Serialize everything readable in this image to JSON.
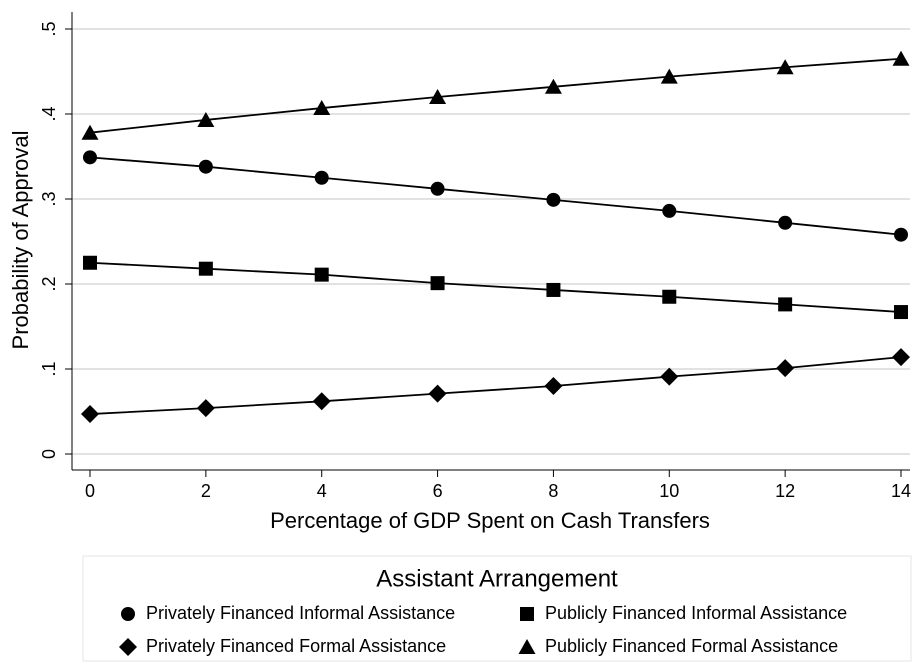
{
  "chart_data": {
    "type": "line",
    "xlabel": "Percentage of GDP Spent on Cash Transfers",
    "ylabel": "Probability of Approval",
    "x": [
      0,
      2,
      4,
      6,
      8,
      10,
      12,
      14
    ],
    "xlim": [
      0,
      14
    ],
    "xticks": [
      0,
      2,
      4,
      6,
      8,
      10,
      12,
      14
    ],
    "ylim": [
      0,
      0.5
    ],
    "yticks": [
      0,
      {
        "value": 0.1,
        "label": ".1"
      },
      {
        "value": 0.2,
        "label": ".2"
      },
      {
        "value": 0.3,
        "label": ".3"
      },
      {
        "value": 0.4,
        "label": ".4"
      },
      {
        "value": 0.5,
        "label": ".5"
      }
    ],
    "grid": true,
    "legend_title": "Assistant Arrangement",
    "series": [
      {
        "name": "Privately Financed Informal Assistance",
        "color": "#000000",
        "marker": "circle",
        "values": [
          0.349,
          0.338,
          0.325,
          0.312,
          0.299,
          0.286,
          0.272,
          0.258
        ]
      },
      {
        "name": "Publicly Financed Informal Assistance",
        "color": "#000000",
        "marker": "square",
        "values": [
          0.225,
          0.218,
          0.211,
          0.201,
          0.193,
          0.185,
          0.176,
          0.167
        ]
      },
      {
        "name": "Privately Financed Formal Assistance",
        "color": "#000000",
        "marker": "diamond",
        "values": [
          0.047,
          0.054,
          0.062,
          0.071,
          0.08,
          0.091,
          0.101,
          0.114
        ]
      },
      {
        "name": "Publicly Financed Formal Assistance",
        "color": "#000000",
        "marker": "triangle",
        "values": [
          0.378,
          0.393,
          0.407,
          0.42,
          0.432,
          0.444,
          0.455,
          0.465
        ]
      }
    ]
  }
}
